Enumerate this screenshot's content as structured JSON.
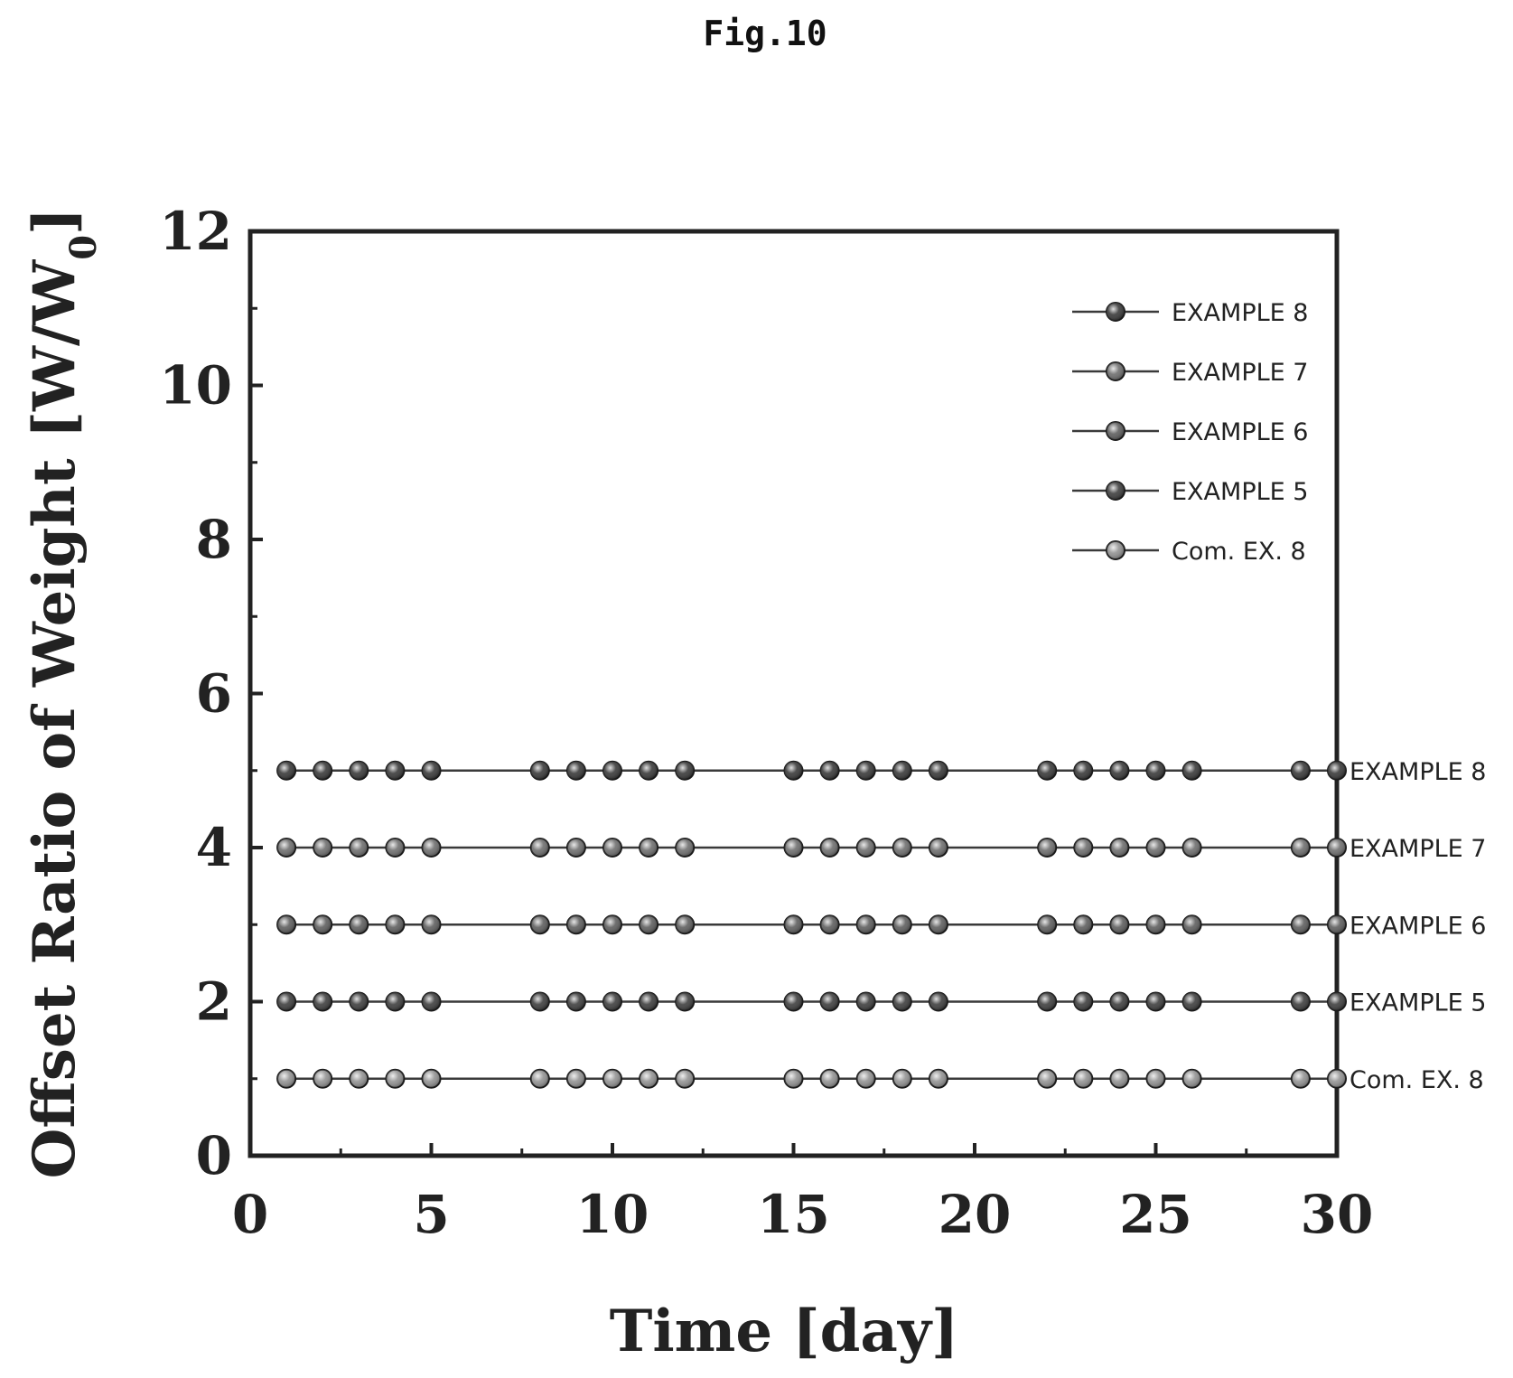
{
  "figure_label": "Fig.10",
  "chart_data": {
    "type": "line",
    "title": "",
    "xlabel": "Time [day]",
    "ylabel_main": "Offset Ratio of Weight [W/W",
    "ylabel_sub": "0",
    "ylabel_end": "]",
    "xlim": [
      0,
      30
    ],
    "ylim": [
      0,
      12
    ],
    "x_ticks": [
      0,
      5,
      10,
      15,
      20,
      25,
      30
    ],
    "y_ticks": [
      0,
      2,
      4,
      6,
      8,
      10,
      12
    ],
    "legend_position": "top-right",
    "grid": false,
    "x": [
      1,
      2,
      3,
      4,
      5,
      8,
      9,
      10,
      11,
      12,
      15,
      16,
      17,
      18,
      19,
      22,
      23,
      24,
      25,
      26,
      29,
      30
    ],
    "series": [
      {
        "name": "EXAMPLE 8",
        "color": "#2e2e2e",
        "values": [
          5,
          5,
          5,
          5,
          5,
          5,
          5,
          5,
          5,
          5,
          5,
          5,
          5,
          5,
          5,
          5,
          5,
          5,
          5,
          5,
          5,
          5
        ]
      },
      {
        "name": "EXAMPLE 7",
        "color": "#666666",
        "values": [
          4,
          4,
          4,
          4,
          4,
          4,
          4,
          4,
          4,
          4,
          4,
          4,
          4,
          4,
          4,
          4,
          4,
          4,
          4,
          4,
          4,
          4
        ]
      },
      {
        "name": "EXAMPLE 6",
        "color": "#555555",
        "values": [
          3,
          3,
          3,
          3,
          3,
          3,
          3,
          3,
          3,
          3,
          3,
          3,
          3,
          3,
          3,
          3,
          3,
          3,
          3,
          3,
          3,
          3
        ]
      },
      {
        "name": "EXAMPLE 5",
        "color": "#333333",
        "values": [
          2,
          2,
          2,
          2,
          2,
          2,
          2,
          2,
          2,
          2,
          2,
          2,
          2,
          2,
          2,
          2,
          2,
          2,
          2,
          2,
          2,
          2
        ]
      },
      {
        "name": "Com.  EX.  8",
        "color": "#8c8c8c",
        "values": [
          1,
          1,
          1,
          1,
          1,
          1,
          1,
          1,
          1,
          1,
          1,
          1,
          1,
          1,
          1,
          1,
          1,
          1,
          1,
          1,
          1,
          1
        ]
      }
    ],
    "end_labels": [
      "EXAMPLE 8",
      "EXAMPLE 7",
      "EXAMPLE 6",
      "EXAMPLE 5",
      "Com.  EX.  8"
    ]
  }
}
